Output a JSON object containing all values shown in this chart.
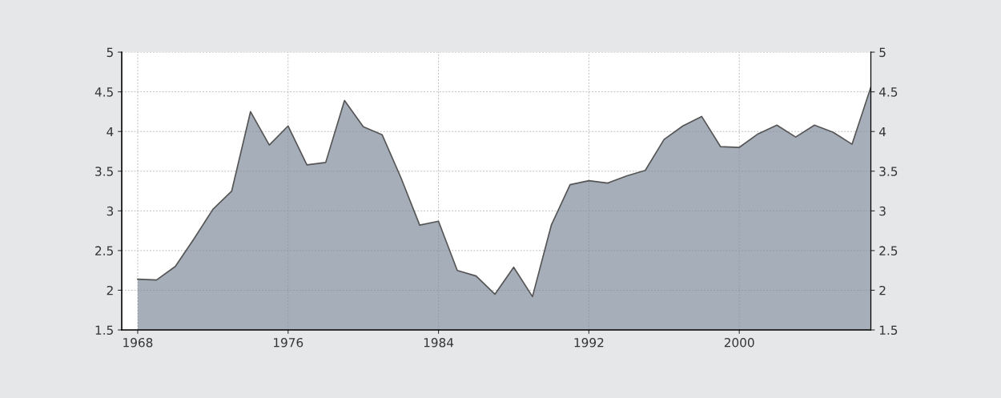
{
  "chart_data": {
    "type": "area",
    "x": [
      1968,
      1969,
      1970,
      1971,
      1972,
      1973,
      1974,
      1975,
      1976,
      1977,
      1978,
      1979,
      1980,
      1981,
      1982,
      1983,
      1984,
      1985,
      1986,
      1987,
      1988,
      1989,
      1990,
      1991,
      1992,
      1993,
      1994,
      1995,
      1996,
      1997,
      1998,
      1999,
      2000,
      2001,
      2002,
      2003,
      2004,
      2005,
      2006,
      2007
    ],
    "series": [
      {
        "color": "#7f8c9b",
        "values": [
          2.14,
          2.13,
          2.3,
          2.65,
          3.02,
          3.25,
          4.25,
          3.83,
          4.07,
          3.58,
          3.61,
          4.39,
          4.06,
          3.96,
          3.42,
          2.82,
          2.87,
          2.25,
          2.18,
          1.95,
          2.29,
          1.92,
          2.82,
          3.33,
          3.38,
          3.35,
          3.44,
          3.51,
          3.9,
          4.07,
          4.19,
          3.81,
          3.8,
          3.97,
          4.08,
          3.93,
          4.08,
          3.99,
          3.84,
          4.56
        ]
      }
    ],
    "xlim": [
      1967.15,
      2007
    ],
    "xticks": [
      1968,
      1976,
      1984,
      1992,
      2000
    ],
    "ylim": [
      1.5,
      5
    ],
    "yticks": [
      1.5,
      2,
      2.5,
      3,
      3.5,
      4,
      4.5,
      5
    ],
    "y2lim": [
      1.5,
      5
    ],
    "y2ticks": [
      1.5,
      2,
      2.5,
      3,
      3.5,
      4,
      4.5,
      5
    ],
    "grid": true,
    "legend": false
  }
}
